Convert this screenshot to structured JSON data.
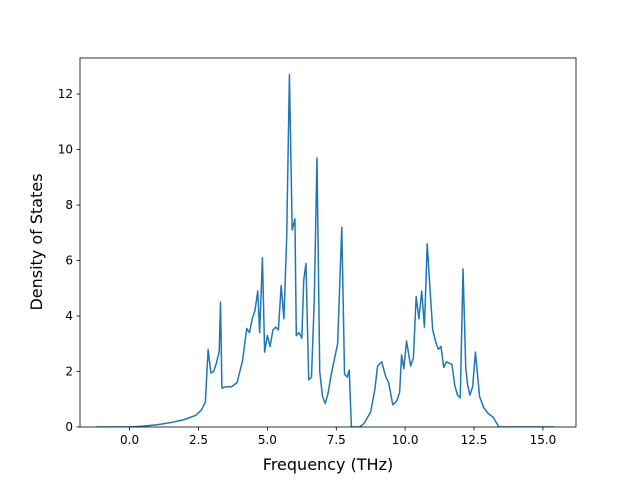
{
  "chart_data": {
    "type": "line",
    "title": "",
    "xlabel": "Frequency (THz)",
    "ylabel": "Density of States",
    "xlim": [
      -1.8,
      16.2
    ],
    "ylim": [
      0,
      13.3
    ],
    "xticks": [
      0.0,
      2.5,
      5.0,
      7.5,
      10.0,
      12.5,
      15.0
    ],
    "xtick_labels": [
      "0.0",
      "2.5",
      "5.0",
      "7.5",
      "10.0",
      "12.5",
      "15.0"
    ],
    "yticks": [
      0,
      2,
      4,
      6,
      8,
      10,
      12
    ],
    "ytick_labels": [
      "0",
      "2",
      "4",
      "6",
      "8",
      "10",
      "12"
    ],
    "grid": false,
    "line_color": "#1f77b4",
    "series": [
      {
        "x": [
          -1.2,
          -0.5,
          0.0,
          0.5,
          1.0,
          1.5,
          2.0,
          2.4,
          2.6,
          2.75,
          2.85,
          2.95,
          3.05,
          3.15,
          3.25,
          3.3,
          3.35,
          3.5,
          3.7,
          3.9,
          4.1,
          4.25,
          4.35,
          4.45,
          4.55,
          4.65,
          4.72,
          4.82,
          4.9,
          5.0,
          5.1,
          5.2,
          5.3,
          5.4,
          5.5,
          5.6,
          5.7,
          5.8,
          5.9,
          6.0,
          6.05,
          6.15,
          6.25,
          6.32,
          6.4,
          6.5,
          6.6,
          6.7,
          6.8,
          6.9,
          7.0,
          7.1,
          7.2,
          7.3,
          7.4,
          7.55,
          7.7,
          7.8,
          7.9,
          7.97,
          8.05,
          8.2,
          8.35,
          8.5,
          8.6,
          8.75,
          8.9,
          9.0,
          9.15,
          9.3,
          9.4,
          9.55,
          9.7,
          9.8,
          9.87,
          9.95,
          10.05,
          10.2,
          10.3,
          10.4,
          10.5,
          10.6,
          10.7,
          10.8,
          10.9,
          11.0,
          11.1,
          11.2,
          11.3,
          11.4,
          11.5,
          11.6,
          11.7,
          11.8,
          11.9,
          12.0,
          12.1,
          12.2,
          12.27,
          12.35,
          12.45,
          12.55,
          12.7,
          12.85,
          13.0,
          13.1,
          13.2,
          13.4,
          13.6,
          13.8,
          14.0,
          14.1,
          14.3,
          14.6,
          15.0,
          15.4
        ],
        "y": [
          0.0,
          0.0,
          0.0,
          0.03,
          0.08,
          0.16,
          0.27,
          0.42,
          0.6,
          0.9,
          2.8,
          1.95,
          2.0,
          2.3,
          2.7,
          4.5,
          1.4,
          1.45,
          1.45,
          1.6,
          2.4,
          3.55,
          3.4,
          3.9,
          4.2,
          4.9,
          3.4,
          6.1,
          2.7,
          3.3,
          2.9,
          3.5,
          3.6,
          3.5,
          5.1,
          3.9,
          6.8,
          12.7,
          7.1,
          7.5,
          3.3,
          3.4,
          3.2,
          5.3,
          5.9,
          1.7,
          1.8,
          4.5,
          9.7,
          2.0,
          1.1,
          0.85,
          1.2,
          1.8,
          2.3,
          3.0,
          7.2,
          1.9,
          1.8,
          2.05,
          0.0,
          0.0,
          0.0,
          0.12,
          0.28,
          0.55,
          1.35,
          2.2,
          2.35,
          1.8,
          1.6,
          0.8,
          0.95,
          1.25,
          2.6,
          2.1,
          3.1,
          2.2,
          2.5,
          4.7,
          3.9,
          4.9,
          3.6,
          6.6,
          5.0,
          3.5,
          3.1,
          2.8,
          2.9,
          2.15,
          2.35,
          2.3,
          2.25,
          1.5,
          1.15,
          1.05,
          5.7,
          2.1,
          1.5,
          1.15,
          1.45,
          2.7,
          1.1,
          0.7,
          0.5,
          0.42,
          0.35,
          0.0,
          0.0,
          0.0,
          0.0,
          0.0,
          0.0,
          0.0,
          0.0,
          0.0
        ]
      }
    ]
  }
}
